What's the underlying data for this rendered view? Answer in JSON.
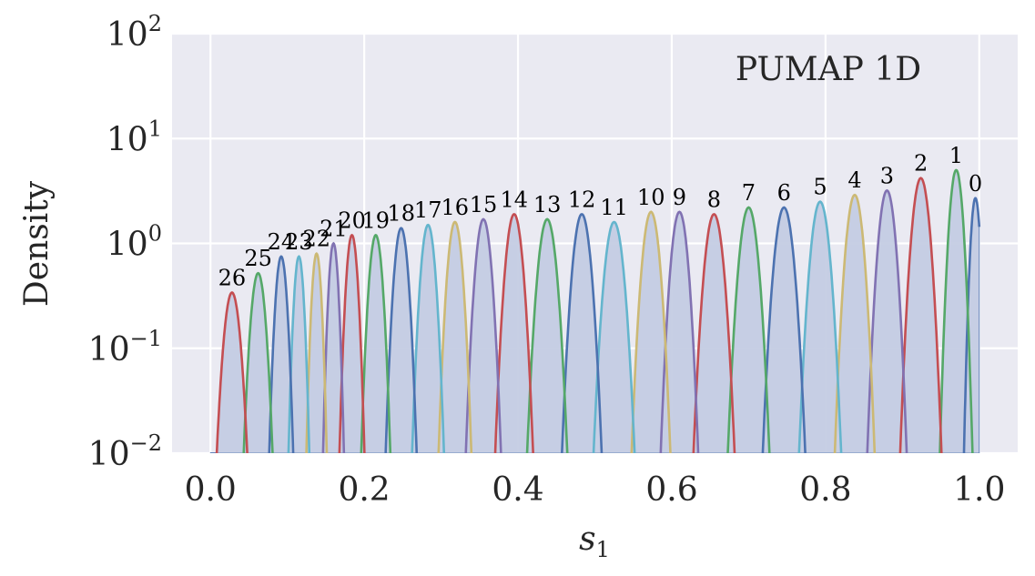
{
  "chart_data": {
    "type": "line",
    "title": "PUMAP 1D",
    "xlabel": "s",
    "xlabel_sub": "1",
    "ylabel": "Density",
    "xlim": [
      -0.05,
      1.05
    ],
    "ylim": [
      0.01,
      100
    ],
    "yscale": "log",
    "grid": true,
    "legend": "none",
    "x_ticks": [
      {
        "value": 0.0,
        "label": "0.0"
      },
      {
        "value": 0.2,
        "label": "0.2"
      },
      {
        "value": 0.4,
        "label": "0.4"
      },
      {
        "value": 0.6,
        "label": "0.6"
      },
      {
        "value": 0.8,
        "label": "0.8"
      },
      {
        "value": 1.0,
        "label": "1.0"
      }
    ],
    "y_ticks": [
      {
        "value": 0.01,
        "base": "10",
        "exp": "−2"
      },
      {
        "value": 0.1,
        "base": "10",
        "exp": "−1"
      },
      {
        "value": 1,
        "base": "10",
        "exp": "0"
      },
      {
        "value": 10,
        "base": "10",
        "exp": "1"
      },
      {
        "value": 100,
        "base": "10",
        "exp": "2"
      }
    ],
    "series": [
      {
        "label": "0",
        "center": 0.995,
        "peak": 2.7,
        "color": "#4C72B0"
      },
      {
        "label": "1",
        "center": 0.97,
        "peak": 5.0,
        "color": "#55A868"
      },
      {
        "label": "2",
        "center": 0.924,
        "peak": 4.2,
        "color": "#C44E52"
      },
      {
        "label": "3",
        "center": 0.88,
        "peak": 3.2,
        "color": "#8172B2"
      },
      {
        "label": "4",
        "center": 0.838,
        "peak": 2.9,
        "color": "#CCB974"
      },
      {
        "label": "5",
        "center": 0.793,
        "peak": 2.5,
        "color": "#64B5CD"
      },
      {
        "label": "6",
        "center": 0.746,
        "peak": 2.2,
        "color": "#4C72B0"
      },
      {
        "label": "7",
        "center": 0.7,
        "peak": 2.2,
        "color": "#55A868"
      },
      {
        "label": "8",
        "center": 0.655,
        "peak": 1.9,
        "color": "#C44E52"
      },
      {
        "label": "9",
        "center": 0.61,
        "peak": 2.0,
        "color": "#8172B2"
      },
      {
        "label": "10",
        "center": 0.573,
        "peak": 2.0,
        "color": "#CCB974"
      },
      {
        "label": "11",
        "center": 0.525,
        "peak": 1.6,
        "color": "#64B5CD"
      },
      {
        "label": "12",
        "center": 0.483,
        "peak": 1.9,
        "color": "#4C72B0"
      },
      {
        "label": "13",
        "center": 0.438,
        "peak": 1.7,
        "color": "#55A868"
      },
      {
        "label": "14",
        "center": 0.395,
        "peak": 1.9,
        "color": "#C44E52"
      },
      {
        "label": "15",
        "center": 0.355,
        "peak": 1.7,
        "color": "#8172B2"
      },
      {
        "label": "16",
        "center": 0.318,
        "peak": 1.6,
        "color": "#CCB974"
      },
      {
        "label": "17",
        "center": 0.283,
        "peak": 1.5,
        "color": "#64B5CD"
      },
      {
        "label": "18",
        "center": 0.248,
        "peak": 1.4,
        "color": "#4C72B0"
      },
      {
        "label": "19",
        "center": 0.215,
        "peak": 1.2,
        "color": "#55A868"
      },
      {
        "label": "20",
        "center": 0.184,
        "peak": 1.2,
        "color": "#C44E52"
      },
      {
        "label": "21",
        "center": 0.16,
        "peak": 1.0,
        "color": "#8172B2"
      },
      {
        "label": "22",
        "center": 0.138,
        "peak": 0.8,
        "color": "#CCB974"
      },
      {
        "label": "23",
        "center": 0.115,
        "peak": 0.75,
        "color": "#64B5CD"
      },
      {
        "label": "24",
        "center": 0.092,
        "peak": 0.75,
        "color": "#4C72B0"
      },
      {
        "label": "25",
        "center": 0.062,
        "peak": 0.52,
        "color": "#55A868"
      },
      {
        "label": "26",
        "center": 0.028,
        "peak": 0.34,
        "color": "#C44E52"
      }
    ]
  },
  "colors": {
    "plot_background": "#EAEAF2",
    "grid": "#FFFFFF",
    "fill": "#C4CCE3",
    "fill_edge": "#4C72B0"
  }
}
